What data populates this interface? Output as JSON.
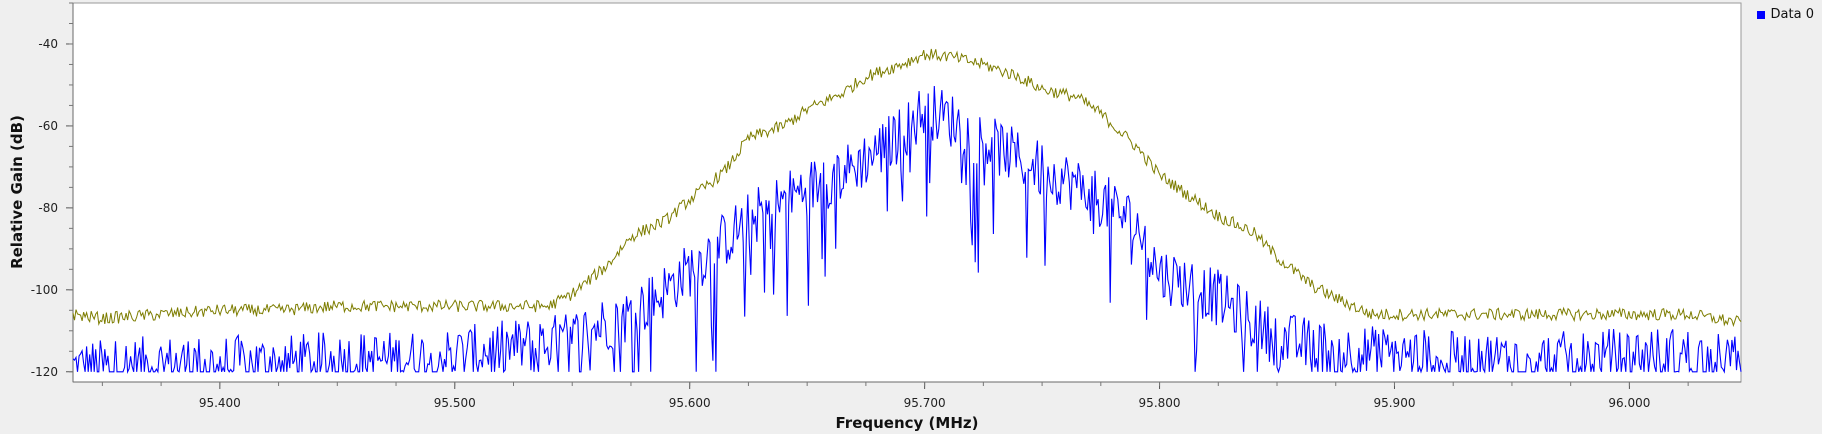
{
  "legend": {
    "entries": [
      {
        "label": "Data 0",
        "color": "#0000ff"
      }
    ]
  },
  "chart_data": {
    "type": "line",
    "title": "",
    "xlabel": "Frequency (MHz)",
    "ylabel": "Relative Gain (dB)",
    "xlim": [
      95.3375,
      96.0475
    ],
    "ylim": [
      -122.5,
      -30
    ],
    "grid": false,
    "legend_position": "top-right",
    "x_ticks": [
      95.4,
      95.5,
      95.6,
      95.7,
      95.8,
      95.9,
      96.0
    ],
    "x_tick_labels": [
      "95.400",
      "95.500",
      "95.600",
      "95.700",
      "95.800",
      "95.900",
      "96.000"
    ],
    "y_ticks": [
      -40,
      -60,
      -80,
      -100,
      -120
    ],
    "y_tick_labels": [
      "-40",
      "-60",
      "-80",
      "-100",
      "-120"
    ],
    "series": [
      {
        "name": "Data 0",
        "color": "#0000ff",
        "x": [
          95.3375,
          95.35,
          95.375,
          95.4,
          95.425,
          95.45,
          95.475,
          95.5,
          95.525,
          95.54,
          95.55,
          95.56,
          95.575,
          95.59,
          95.6,
          95.61,
          95.625,
          95.64,
          95.65,
          95.66,
          95.67,
          95.68,
          95.69,
          95.7,
          95.71,
          95.72,
          95.73,
          95.74,
          95.75,
          95.76,
          95.775,
          95.79,
          95.8,
          95.81,
          95.825,
          95.84,
          95.85,
          95.875,
          95.9,
          95.925,
          95.95,
          95.975,
          96.0,
          96.025,
          96.0475
        ],
        "values": [
          -119,
          -119,
          -118,
          -118,
          -118,
          -117,
          -117,
          -116,
          -114,
          -113,
          -112,
          -109,
          -106,
          -100,
          -95,
          -90,
          -83,
          -78,
          -75,
          -73,
          -70,
          -66,
          -62,
          -56,
          -58,
          -62,
          -65,
          -68,
          -71,
          -73,
          -78,
          -84,
          -96,
          -98,
          -102,
          -108,
          -112,
          -115,
          -116,
          -117,
          -117,
          -117,
          -116,
          -116,
          -118
        ]
      },
      {
        "name": "",
        "color": "#7d7d00",
        "x": [
          95.3375,
          95.35,
          95.375,
          95.4,
          95.425,
          95.45,
          95.475,
          95.5,
          95.525,
          95.54,
          95.55,
          95.565,
          95.575,
          95.59,
          95.6,
          95.615,
          95.625,
          95.64,
          95.65,
          95.665,
          95.675,
          95.69,
          95.7,
          95.71,
          95.725,
          95.74,
          95.75,
          95.765,
          95.775,
          95.79,
          95.8,
          95.815,
          95.825,
          95.84,
          95.85,
          95.865,
          95.875,
          95.89,
          95.9,
          95.925,
          95.95,
          95.975,
          96.0,
          96.025,
          96.0475
        ],
        "values": [
          -106,
          -107,
          -106,
          -105,
          -105,
          -104,
          -104,
          -104,
          -104,
          -104,
          -101,
          -94,
          -87,
          -83,
          -78,
          -71,
          -63,
          -60,
          -56,
          -52,
          -48,
          -45,
          -42.5,
          -43,
          -45,
          -48,
          -51,
          -53,
          -57,
          -65,
          -72,
          -78,
          -82,
          -86,
          -92,
          -99,
          -102,
          -106,
          -106,
          -106,
          -106,
          -106,
          -106,
          -106,
          -108
        ]
      }
    ]
  }
}
